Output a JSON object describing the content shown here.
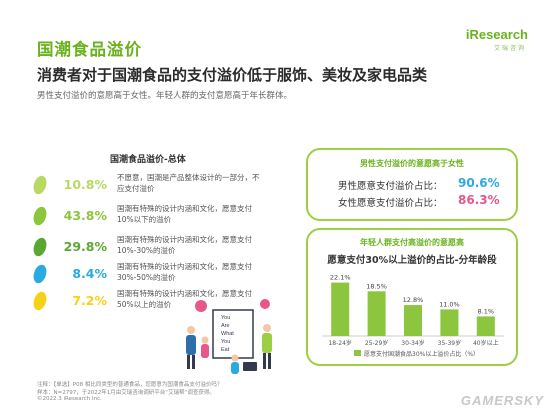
{
  "title": "国潮食品溢价",
  "logo": {
    "main": "iResearch",
    "sub": "艾瑞咨询"
  },
  "subtitle": "消费者对于国潮食品的支付溢价低于服饰、美妆及家电品类",
  "description": "男性支付溢价的意愿高于女性。年轻人群的支付意愿高于年长群体。",
  "left_panel": {
    "title": "国潮食品溢价-总体",
    "segments": [
      {
        "pct": "10.8%",
        "text": "不愿意，国潮是产品整体设计的一部分，不应支付溢价",
        "color": "#b8d962"
      },
      {
        "pct": "43.8%",
        "text": "国潮有特殊的设计内涵和文化，愿意支付10%以下的溢价",
        "color": "#8cc63f"
      },
      {
        "pct": "29.8%",
        "text": "国潮有特殊的设计内涵和文化，愿意支付10%-30%的溢价",
        "color": "#5aa832"
      },
      {
        "pct": "8.4%",
        "text": "国潮有特殊的设计内涵和文化，愿意支付30%-50%的溢价",
        "color": "#29abe2"
      },
      {
        "pct": "7.2%",
        "text": "国潮有特殊的设计内涵和文化，愿意支付50%以上的溢价",
        "color": "#f5d21a"
      }
    ]
  },
  "gender_panel": {
    "title": "男性支付溢价的意愿高于女性",
    "rows": [
      {
        "label": "男性愿意支付溢价占比：",
        "value": "90.6%",
        "color": "#29abe2"
      },
      {
        "label": "女性愿意支付溢价占比：",
        "value": "86.3%",
        "color": "#e8578a"
      }
    ]
  },
  "age_panel": {
    "title": "年轻人群支付高溢价的意愿高",
    "chart_title": "愿意支付30%以上溢价的占比-分年龄段",
    "legend": "愿意支付国潮食品30%以上溢价占比（%）"
  },
  "chart_data": {
    "type": "bar",
    "title": "愿意支付30%以上溢价的占比-分年龄段",
    "categories": [
      "18-24岁",
      "25-29岁",
      "30-34岁",
      "35-39岁",
      "40岁以上"
    ],
    "values": [
      22.1,
      18.5,
      12.8,
      11.0,
      8.1
    ],
    "value_labels": [
      "22.1%",
      "18.5%",
      "12.8%",
      "11.0%",
      "8.1%"
    ],
    "series_name": "愿意支付国潮食品30%以上溢价占比（%）",
    "ylim": [
      0,
      24
    ],
    "bar_color": "#8cc63f",
    "grid": false,
    "legend_position": "bottom"
  },
  "illustration": {
    "board_text": [
      "You",
      "Are",
      "What",
      "You",
      "Eat"
    ]
  },
  "footnotes": [
    "注释：【单选】P08 相比同类型的普通食品，您愿意为国潮食品支付溢价吗？",
    "样本：N=2797，于2022年1月由艾瑞咨询调研平台“艾瑞帮”调查获得。",
    "©2022.3 iResearch Inc."
  ],
  "watermark": "GAMERSKY"
}
